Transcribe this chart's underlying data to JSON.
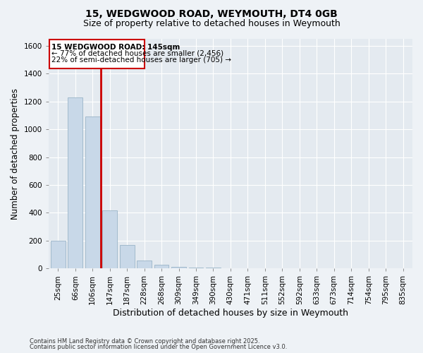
{
  "title": "15, WEDGWOOD ROAD, WEYMOUTH, DT4 0GB",
  "subtitle": "Size of property relative to detached houses in Weymouth",
  "xlabel": "Distribution of detached houses by size in Weymouth",
  "ylabel": "Number of detached properties",
  "categories": [
    "25sqm",
    "66sqm",
    "106sqm",
    "147sqm",
    "187sqm",
    "228sqm",
    "268sqm",
    "309sqm",
    "349sqm",
    "390sqm",
    "430sqm",
    "471sqm",
    "511sqm",
    "552sqm",
    "592sqm",
    "633sqm",
    "673sqm",
    "714sqm",
    "754sqm",
    "795sqm",
    "835sqm"
  ],
  "values": [
    200,
    1230,
    1090,
    415,
    170,
    55,
    25,
    12,
    8,
    5,
    3,
    2,
    2,
    1,
    1,
    1,
    0,
    0,
    0,
    0,
    0
  ],
  "bar_color": "#c8d8e8",
  "bar_edgecolor": "#9ab4c8",
  "property_line_color": "#cc0000",
  "annotation_box_color": "#cc0000",
  "annotation_text_line1": "15 WEDGWOOD ROAD: 145sqm",
  "annotation_text_line2": "← 77% of detached houses are smaller (2,456)",
  "annotation_text_line3": "22% of semi-detached houses are larger (705) →",
  "ylim": [
    0,
    1650
  ],
  "yticks": [
    0,
    200,
    400,
    600,
    800,
    1000,
    1200,
    1400,
    1600
  ],
  "footnote1": "Contains HM Land Registry data © Crown copyright and database right 2025.",
  "footnote2": "Contains public sector information licensed under the Open Government Licence v3.0.",
  "background_color": "#eef2f6",
  "plot_background": "#e4eaf0",
  "title_fontsize": 10,
  "subtitle_fontsize": 9,
  "tick_fontsize": 7.5,
  "ylabel_fontsize": 8.5,
  "xlabel_fontsize": 9
}
